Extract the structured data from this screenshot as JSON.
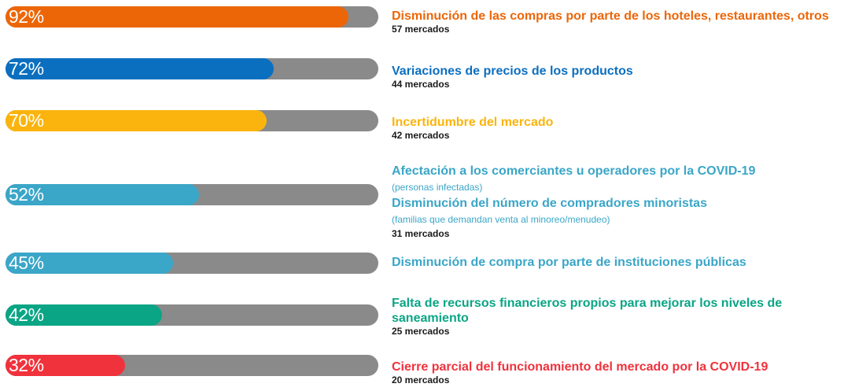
{
  "chart_data": {
    "type": "bar",
    "orientation": "horizontal",
    "value_unit": "%",
    "xlim": [
      0,
      100
    ],
    "track_color": "#8a8a8a",
    "bars": [
      {
        "value": 92,
        "value_label": "92%",
        "color": "#ec6608",
        "lines": [
          {
            "text": "Disminución de las compras por parte de los hoteles, restaurantes, otros",
            "kind": "title"
          }
        ],
        "count_label": "57 mercados"
      },
      {
        "value": 72,
        "value_label": "72%",
        "color": "#0b6fc0",
        "lines": [
          {
            "text": "Variaciones de precios de los productos",
            "kind": "title"
          }
        ],
        "count_label": "44 mercados"
      },
      {
        "value": 70,
        "value_label": "70%",
        "color": "#fbb40e",
        "lines": [
          {
            "text": "Incertidumbre del mercado",
            "kind": "title"
          }
        ],
        "count_label": "42 mercados"
      },
      {
        "value": 52,
        "value_label": "52%",
        "color": "#3aa6c8",
        "lines": [
          {
            "text": "Afectación a los comerciantes u operadores por la COVID-19",
            "kind": "title"
          },
          {
            "text": "(personas infectadas)",
            "kind": "note"
          },
          {
            "text": "Disminución del número de compradores minoristas",
            "kind": "title"
          },
          {
            "text": "(familias que demandan venta al minoreo/menudeo)",
            "kind": "note"
          }
        ],
        "count_label": "31 mercados"
      },
      {
        "value": 45,
        "value_label": "45%",
        "color": "#3aa6c8",
        "lines": [
          {
            "text": "Disminución de compra por parte de instituciones públicas",
            "kind": "title"
          }
        ],
        "count_label": ""
      },
      {
        "value": 42,
        "value_label": "42%",
        "color": "#0aa585",
        "lines": [
          {
            "text": "Falta de recursos financieros propios para mejorar los niveles de",
            "kind": "title"
          },
          {
            "text": "saneamiento",
            "kind": "title"
          }
        ],
        "count_label": "25 mercados"
      },
      {
        "value": 32,
        "value_label": "32%",
        "color": "#f0323c",
        "lines": [
          {
            "text": "Cierre parcial del funcionamiento del mercado por la COVID-19",
            "kind": "title"
          }
        ],
        "count_label": "20 mercados"
      }
    ]
  }
}
